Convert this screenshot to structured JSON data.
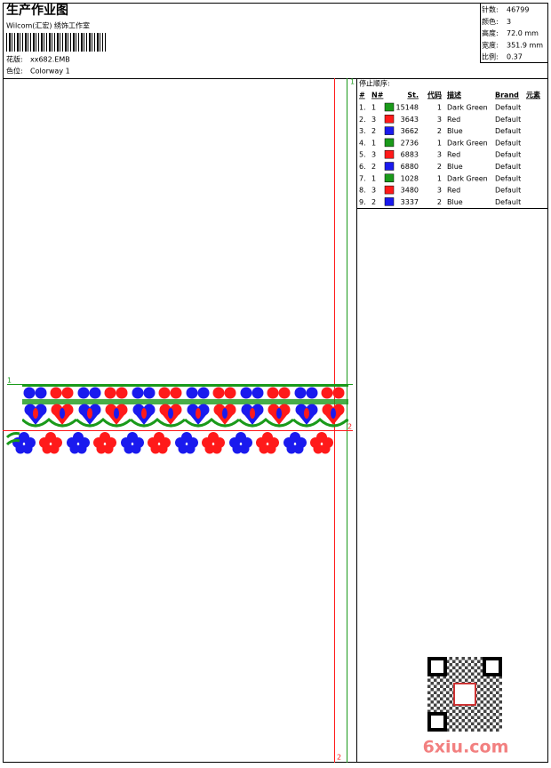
{
  "header": {
    "title": "生产作业图",
    "studio": "Wilcom(汇宏) 绣饰工作室",
    "design_label": "花版:",
    "design": "xx682.EMB",
    "colorway_label": "色位:",
    "colorway": "Colorway 1"
  },
  "info": [
    {
      "label": "针数:",
      "value": "46799"
    },
    {
      "label": "颜色:",
      "value": "3"
    },
    {
      "label": "高度:",
      "value": "72.0 mm"
    },
    {
      "label": "宽度:",
      "value": "351.9 mm"
    },
    {
      "label": "比例:",
      "value": "0.37"
    }
  ],
  "table": {
    "title": "停止顺序:",
    "columns": [
      "#",
      "N#",
      "St.",
      "代码",
      "描述",
      "Brand",
      "元素"
    ],
    "rows": [
      {
        "index": "1.",
        "needle": "1",
        "stitches": "15148",
        "code": "1",
        "description": "Dark Green",
        "brand": "Default",
        "color": "#1a9a1a"
      },
      {
        "index": "2.",
        "needle": "3",
        "stitches": "3643",
        "code": "3",
        "description": "Red",
        "brand": "Default",
        "color": "#ff1a1a"
      },
      {
        "index": "3.",
        "needle": "2",
        "stitches": "3662",
        "code": "2",
        "description": "Blue",
        "brand": "Default",
        "color": "#1a1aee"
      },
      {
        "index": "4.",
        "needle": "1",
        "stitches": "2736",
        "code": "1",
        "description": "Dark Green",
        "brand": "Default",
        "color": "#1a9a1a"
      },
      {
        "index": "5.",
        "needle": "3",
        "stitches": "6883",
        "code": "3",
        "description": "Red",
        "brand": "Default",
        "color": "#ff1a1a"
      },
      {
        "index": "6.",
        "needle": "2",
        "stitches": "6880",
        "code": "2",
        "description": "Blue",
        "brand": "Default",
        "color": "#1a1aee"
      },
      {
        "index": "7.",
        "needle": "1",
        "stitches": "1028",
        "code": "1",
        "description": "Dark Green",
        "brand": "Default",
        "color": "#1a9a1a"
      },
      {
        "index": "8.",
        "needle": "3",
        "stitches": "3480",
        "code": "3",
        "description": "Red",
        "brand": "Default",
        "color": "#ff1a1a"
      },
      {
        "index": "9.",
        "needle": "2",
        "stitches": "3337",
        "code": "2",
        "description": "Blue",
        "brand": "Default",
        "color": "#1a1aee"
      }
    ]
  },
  "markers": {
    "green_top": "1",
    "green_left": "1",
    "red_right": "2",
    "red_bottom": "2"
  },
  "watermark": "6xiu.com"
}
